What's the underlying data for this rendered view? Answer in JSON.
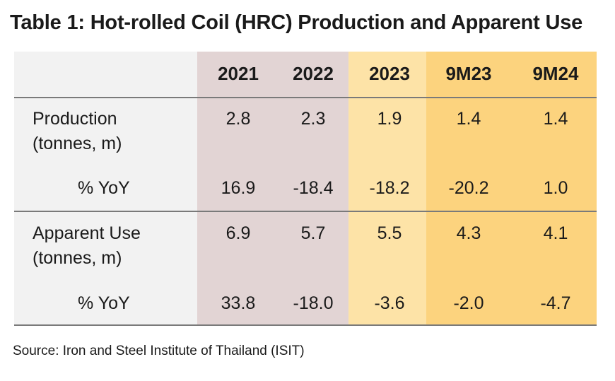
{
  "title": "Table 1: Hot-rolled Coil (HRC) Production and Apparent Use",
  "columns": [
    "2021",
    "2022",
    "2023",
    "9M23",
    "9M24"
  ],
  "rows": [
    {
      "label_line1": "Production",
      "label_line2": "(tonnes, m)",
      "values": [
        "2.8",
        "2.3",
        "1.9",
        "1.4",
        "1.4"
      ]
    },
    {
      "label": "% YoY",
      "values": [
        "16.9",
        "-18.4",
        "-18.2",
        "-20.2",
        "1.0"
      ]
    },
    {
      "label_line1": "Apparent Use",
      "label_line2": "(tonnes, m)",
      "values": [
        "6.9",
        "5.7",
        "5.5",
        "4.3",
        "4.1"
      ]
    },
    {
      "label": "% YoY",
      "values": [
        "33.8",
        "-18.0",
        "-3.6",
        "-2.0",
        "-4.7"
      ]
    }
  ],
  "source": "Source:  Iron and Steel Institute of Thailand (ISIT)",
  "colors": {
    "label_bg": "#f2f2f2",
    "col_2021_2022_bg": "#e2d4d4",
    "col_2023_bg": "#fde3a7",
    "col_9m_bg": "#fcd37e",
    "rule": "#7a7a7a"
  }
}
